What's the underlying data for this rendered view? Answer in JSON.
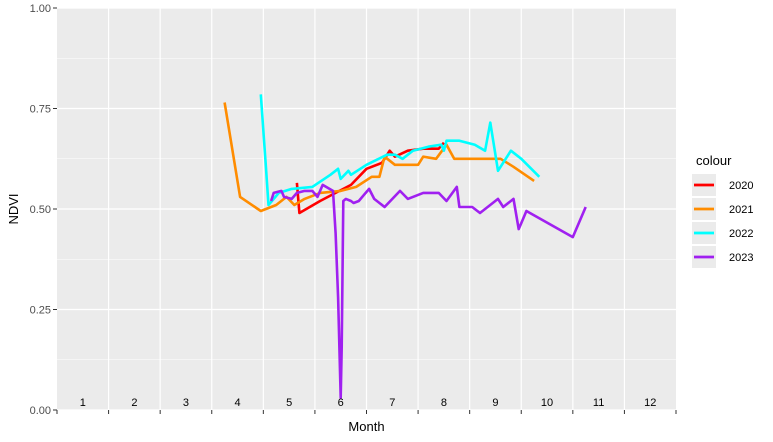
{
  "chart_data": {
    "type": "line",
    "xlabel": "Month",
    "ylabel": "NDVI",
    "ylim": [
      0,
      1
    ],
    "xlim": [
      0.5,
      12.5
    ],
    "yticks": [
      "0.00",
      "0.25",
      "0.50",
      "0.75",
      "1.00"
    ],
    "month_labels": [
      "1",
      "2",
      "3",
      "4",
      "5",
      "6",
      "7",
      "8",
      "9",
      "10",
      "11",
      "12"
    ],
    "grid": true,
    "background": "#ebebeb",
    "legend": {
      "title": "colour",
      "placement": "right"
    },
    "series": [
      {
        "name": "2020",
        "color": "#ff0000",
        "points": [
          [
            5.15,
            0.565
          ],
          [
            5.2,
            0.49
          ],
          [
            5.6,
            0.52
          ],
          [
            5.9,
            0.54
          ],
          [
            6.2,
            0.56
          ],
          [
            6.5,
            0.6
          ],
          [
            6.8,
            0.615
          ],
          [
            6.95,
            0.645
          ],
          [
            7.05,
            0.63
          ],
          [
            7.3,
            0.645
          ],
          [
            7.6,
            0.65
          ],
          [
            7.9,
            0.65
          ],
          [
            8.0,
            0.665
          ]
        ]
      },
      {
        "name": "2021",
        "color": "#ff8c00",
        "points": [
          [
            3.75,
            0.765
          ],
          [
            4.05,
            0.53
          ],
          [
            4.45,
            0.495
          ],
          [
            4.75,
            0.51
          ],
          [
            4.95,
            0.53
          ],
          [
            5.1,
            0.51
          ],
          [
            5.3,
            0.525
          ],
          [
            5.6,
            0.54
          ],
          [
            6.0,
            0.545
          ],
          [
            6.3,
            0.555
          ],
          [
            6.6,
            0.58
          ],
          [
            6.75,
            0.58
          ],
          [
            6.85,
            0.63
          ],
          [
            7.05,
            0.61
          ],
          [
            7.5,
            0.61
          ],
          [
            7.6,
            0.63
          ],
          [
            7.85,
            0.625
          ],
          [
            8.05,
            0.66
          ],
          [
            8.2,
            0.625
          ],
          [
            8.6,
            0.625
          ],
          [
            8.9,
            0.625
          ],
          [
            9.1,
            0.625
          ],
          [
            9.35,
            0.605
          ],
          [
            9.75,
            0.57
          ]
        ]
      },
      {
        "name": "2022",
        "color": "#00ffff",
        "points": [
          [
            4.45,
            0.785
          ],
          [
            4.55,
            0.605
          ],
          [
            4.6,
            0.51
          ],
          [
            4.8,
            0.54
          ],
          [
            5.05,
            0.55
          ],
          [
            5.45,
            0.555
          ],
          [
            5.8,
            0.585
          ],
          [
            5.95,
            0.6
          ],
          [
            6.0,
            0.575
          ],
          [
            6.15,
            0.595
          ],
          [
            6.2,
            0.585
          ],
          [
            6.5,
            0.61
          ],
          [
            6.9,
            0.635
          ],
          [
            7.05,
            0.635
          ],
          [
            7.2,
            0.625
          ],
          [
            7.4,
            0.645
          ],
          [
            7.7,
            0.655
          ],
          [
            7.95,
            0.66
          ],
          [
            8.0,
            0.645
          ],
          [
            8.05,
            0.67
          ],
          [
            8.3,
            0.67
          ],
          [
            8.6,
            0.66
          ],
          [
            8.8,
            0.645
          ],
          [
            8.9,
            0.715
          ],
          [
            9.05,
            0.595
          ],
          [
            9.3,
            0.645
          ],
          [
            9.5,
            0.625
          ],
          [
            9.85,
            0.58
          ]
        ]
      },
      {
        "name": "2023",
        "color": "#a020f0",
        "points": [
          [
            4.65,
            0.52
          ],
          [
            4.7,
            0.54
          ],
          [
            4.85,
            0.545
          ],
          [
            4.9,
            0.53
          ],
          [
            5.05,
            0.525
          ],
          [
            5.15,
            0.54
          ],
          [
            5.3,
            0.545
          ],
          [
            5.45,
            0.545
          ],
          [
            5.55,
            0.53
          ],
          [
            5.65,
            0.56
          ],
          [
            5.85,
            0.545
          ],
          [
            5.9,
            0.44
          ],
          [
            5.95,
            0.28
          ],
          [
            6.0,
            0.03
          ],
          [
            6.02,
            0.155
          ],
          [
            6.05,
            0.52
          ],
          [
            6.1,
            0.525
          ],
          [
            6.2,
            0.52
          ],
          [
            6.25,
            0.515
          ],
          [
            6.35,
            0.52
          ],
          [
            6.45,
            0.535
          ],
          [
            6.55,
            0.55
          ],
          [
            6.65,
            0.525
          ],
          [
            6.85,
            0.505
          ],
          [
            7.15,
            0.545
          ],
          [
            7.3,
            0.525
          ],
          [
            7.6,
            0.54
          ],
          [
            7.9,
            0.54
          ],
          [
            8.05,
            0.52
          ],
          [
            8.25,
            0.555
          ],
          [
            8.3,
            0.505
          ],
          [
            8.55,
            0.505
          ],
          [
            8.7,
            0.49
          ],
          [
            9.05,
            0.525
          ],
          [
            9.15,
            0.505
          ],
          [
            9.35,
            0.525
          ],
          [
            9.45,
            0.45
          ],
          [
            9.5,
            0.465
          ],
          [
            9.6,
            0.495
          ],
          [
            10.5,
            0.43
          ],
          [
            10.75,
            0.505
          ]
        ]
      }
    ]
  }
}
